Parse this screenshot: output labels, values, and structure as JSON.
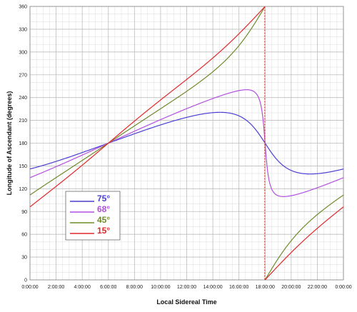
{
  "chart_data": {
    "type": "line",
    "xlabel": "Local Sidereal Time",
    "ylabel": "Longitude of Ascendant (degrees)",
    "xlim": [
      0,
      24
    ],
    "ylim": [
      0,
      360
    ],
    "x_tick_labels": [
      "0:00:00",
      "2:00:00",
      "4:00:00",
      "6:00:00",
      "8:00:00",
      "10:00:00",
      "12:00:00",
      "14:00:00",
      "16:00:00",
      "18:00:00",
      "20:00:00",
      "22:00:00",
      "0:00:00"
    ],
    "y_tick_labels": [
      "0",
      "30",
      "60",
      "90",
      "120",
      "150",
      "180",
      "210",
      "240",
      "270",
      "300",
      "330",
      "360"
    ],
    "grid": true,
    "legend_position": "lower-left",
    "series": [
      {
        "name": "75°",
        "color": "#4a3fd4",
        "latitude": 75
      },
      {
        "name": "68°",
        "color": "#b24fe0",
        "latitude": 68
      },
      {
        "name": "45°",
        "color": "#6f8a2a",
        "latitude": 45
      },
      {
        "name": "15°",
        "color": "#e0282a",
        "latitude": 15
      }
    ]
  }
}
